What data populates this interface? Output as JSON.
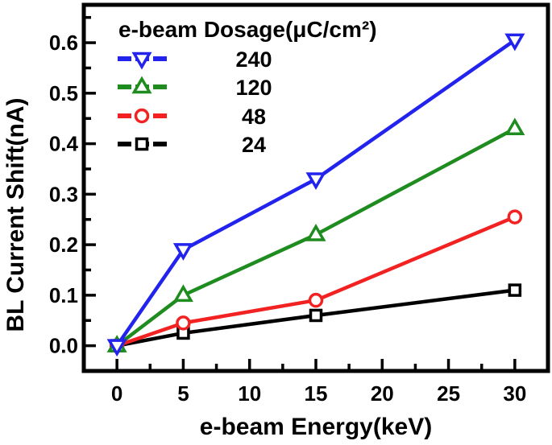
{
  "chart_data": {
    "type": "line",
    "title": "",
    "xlabel": "e-beam Energy(keV)",
    "ylabel": "BL Current Shift(nA)",
    "legend_title": "e-beam Dosage(μC/cm²)",
    "legend_position": "top-left",
    "x": [
      0,
      5,
      15,
      30
    ],
    "series": [
      {
        "name": "24",
        "color": "#000000",
        "marker": "square",
        "values": [
          0.0,
          0.025,
          0.06,
          0.11
        ]
      },
      {
        "name": "48",
        "color": "#f22222",
        "marker": "circle",
        "values": [
          0.0,
          0.045,
          0.09,
          0.255
        ]
      },
      {
        "name": "120",
        "color": "#1f8c1f",
        "marker": "triangle-up",
        "values": [
          0.0,
          0.1,
          0.22,
          0.43
        ]
      },
      {
        "name": "240",
        "color": "#2323ee",
        "marker": "triangle-down",
        "values": [
          0.0,
          0.19,
          0.33,
          0.605
        ]
      }
    ],
    "legend_order": [
      "240",
      "120",
      "48",
      "24"
    ],
    "x_ticks": [
      0,
      5,
      10,
      15,
      20,
      25,
      30
    ],
    "x_tick_labels": [
      "0",
      "5",
      "10",
      "15",
      "20",
      "25",
      "30"
    ],
    "x_minor_ticks": [
      2.5,
      7.5,
      12.5,
      17.5,
      22.5,
      27.5
    ],
    "y_ticks": [
      0.0,
      0.1,
      0.2,
      0.3,
      0.4,
      0.5,
      0.6
    ],
    "y_tick_labels": [
      "0.0",
      "0.1",
      "0.2",
      "0.3",
      "0.4",
      "0.5",
      "0.6"
    ],
    "y_minor_ticks": [
      0.05,
      0.15,
      0.25,
      0.35,
      0.45,
      0.55,
      0.65
    ],
    "xlim": [
      -2.5,
      32.5
    ],
    "ylim": [
      -0.05,
      0.675
    ],
    "grid": false,
    "frame_color": "#000000",
    "background": "#ffffff"
  }
}
